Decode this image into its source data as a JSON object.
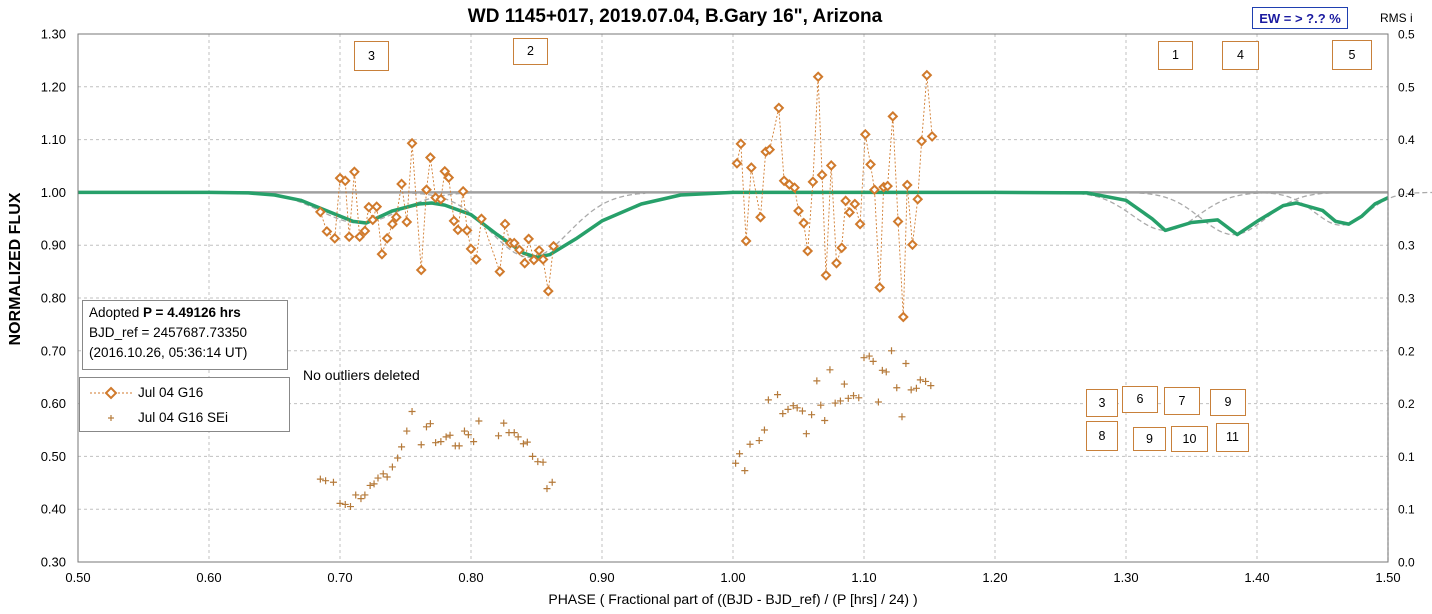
{
  "header": {
    "title": "WD 1145+017, 2019.07.04, B.Gary 16\", Arizona",
    "ew_badge": "EW = > ?.? %",
    "rms_axis_title": "RMS i"
  },
  "info_box": {
    "line1_prefix": "Adopted ",
    "line1_bold": "P = 4.49126 hrs",
    "line2": "BJD_ref = 2457687.73350",
    "line3": "(2016.10.26, 05:36:14 UT)"
  },
  "note": "No outliers deleted",
  "event_boxes": [
    "3",
    "2",
    "1",
    "4",
    "5",
    "3",
    "6",
    "7",
    "9",
    "8",
    "9",
    "10",
    "11"
  ],
  "colors": {
    "flux": "#d07a2c",
    "sei": "#b57a3a",
    "model": "#27a06a",
    "components": "#aaaaaa",
    "baseline": "#a0a0a0",
    "grid": "#c0c0c0"
  },
  "chart_data": {
    "type": "scatter",
    "title": "WD 1145+017, 2019.07.04, B.Gary 16\", Arizona",
    "xlabel": "PHASE ( Fractional part of ((BJD - BJD_ref) / (P [hrs] / 24) )",
    "ylabel": "NORMALIZED FLUX",
    "y2label": "RMS i",
    "xlim": [
      0.5,
      1.5
    ],
    "ylim": [
      0.3,
      1.3
    ],
    "y2lim": [
      0.0,
      0.5
    ],
    "x_ticks": [
      "0.50",
      "0.60",
      "0.70",
      "0.80",
      "0.90",
      "1.00",
      "1.10",
      "1.20",
      "1.30",
      "1.40",
      "1.50"
    ],
    "y_ticks": [
      "0.30",
      "0.40",
      "0.50",
      "0.60",
      "0.70",
      "0.80",
      "0.90",
      "1.00",
      "1.10",
      "1.20",
      "1.30"
    ],
    "y2_ticks": [
      "0.0",
      "0.1",
      "0.1",
      "0.2",
      "0.2",
      "0.3",
      "0.3",
      "0.4",
      "0.4",
      "0.5",
      "0.5"
    ],
    "grid": true,
    "legend_position": "left, middle",
    "series": [
      {
        "name": "Jul 04 G16",
        "marker": "diamond",
        "points": [
          [
            0.685,
            0.963
          ],
          [
            0.69,
            0.926
          ],
          [
            0.696,
            0.913
          ],
          [
            0.7,
            1.027
          ],
          [
            0.704,
            1.022
          ],
          [
            0.707,
            0.916
          ],
          [
            0.711,
            1.039
          ],
          [
            0.715,
            0.916
          ],
          [
            0.719,
            0.927
          ],
          [
            0.722,
            0.972
          ],
          [
            0.725,
            0.948
          ],
          [
            0.728,
            0.973
          ],
          [
            0.732,
            0.883
          ],
          [
            0.736,
            0.913
          ],
          [
            0.74,
            0.94
          ],
          [
            0.743,
            0.953
          ],
          [
            0.747,
            1.016
          ],
          [
            0.751,
            0.944
          ],
          [
            0.755,
            1.093
          ],
          [
            0.762,
            0.853
          ],
          [
            0.766,
            1.005
          ],
          [
            0.769,
            1.066
          ],
          [
            0.773,
            0.99
          ],
          [
            0.777,
            0.987
          ],
          [
            0.78,
            1.04
          ],
          [
            0.783,
            1.028
          ],
          [
            0.787,
            0.946
          ],
          [
            0.79,
            0.929
          ],
          [
            0.794,
            1.002
          ],
          [
            0.797,
            0.928
          ],
          [
            0.8,
            0.893
          ],
          [
            0.804,
            0.873
          ],
          [
            0.808,
            0.95
          ],
          [
            0.822,
            0.85
          ],
          [
            0.826,
            0.94
          ],
          [
            0.83,
            0.904
          ],
          [
            0.833,
            0.904
          ],
          [
            0.837,
            0.891
          ],
          [
            0.841,
            0.866
          ],
          [
            0.844,
            0.912
          ],
          [
            0.848,
            0.872
          ],
          [
            0.852,
            0.89
          ],
          [
            0.855,
            0.873
          ],
          [
            0.859,
            0.813
          ],
          [
            0.863,
            0.898
          ],
          [
            1.003,
            1.055
          ],
          [
            1.006,
            1.092
          ],
          [
            1.01,
            0.908
          ],
          [
            1.014,
            1.047
          ],
          [
            1.021,
            0.953
          ],
          [
            1.025,
            1.077
          ],
          [
            1.028,
            1.081
          ],
          [
            1.035,
            1.16
          ],
          [
            1.039,
            1.022
          ],
          [
            1.043,
            1.015
          ],
          [
            1.047,
            1.009
          ],
          [
            1.05,
            0.965
          ],
          [
            1.054,
            0.942
          ],
          [
            1.057,
            0.889
          ],
          [
            1.061,
            1.02
          ],
          [
            1.065,
            1.219
          ],
          [
            1.068,
            1.033
          ],
          [
            1.071,
            0.843
          ],
          [
            1.075,
            1.051
          ],
          [
            1.079,
            0.866
          ],
          [
            1.083,
            0.895
          ],
          [
            1.086,
            0.984
          ],
          [
            1.089,
            0.962
          ],
          [
            1.093,
            0.978
          ],
          [
            1.097,
            0.94
          ],
          [
            1.101,
            1.11
          ],
          [
            1.105,
            1.053
          ],
          [
            1.108,
            1.005
          ],
          [
            1.112,
            0.82
          ],
          [
            1.115,
            1.01
          ],
          [
            1.118,
            1.012
          ],
          [
            1.122,
            1.144
          ],
          [
            1.126,
            0.945
          ],
          [
            1.13,
            0.764
          ],
          [
            1.133,
            1.014
          ],
          [
            1.137,
            0.901
          ],
          [
            1.141,
            0.987
          ],
          [
            1.144,
            1.097
          ],
          [
            1.148,
            1.222
          ],
          [
            1.152,
            1.106
          ]
        ]
      },
      {
        "name": "Jul 04 G16 SEi",
        "marker": "plus",
        "points": [
          [
            0.685,
            0.457
          ],
          [
            0.689,
            0.454
          ],
          [
            0.695,
            0.451
          ],
          [
            0.7,
            0.411
          ],
          [
            0.704,
            0.409
          ],
          [
            0.708,
            0.405
          ],
          [
            0.712,
            0.427
          ],
          [
            0.716,
            0.42
          ],
          [
            0.719,
            0.427
          ],
          [
            0.723,
            0.445
          ],
          [
            0.726,
            0.448
          ],
          [
            0.729,
            0.459
          ],
          [
            0.733,
            0.467
          ],
          [
            0.736,
            0.461
          ],
          [
            0.74,
            0.48
          ],
          [
            0.744,
            0.497
          ],
          [
            0.747,
            0.518
          ],
          [
            0.751,
            0.548
          ],
          [
            0.755,
            0.585
          ],
          [
            0.762,
            0.522
          ],
          [
            0.766,
            0.556
          ],
          [
            0.769,
            0.562
          ],
          [
            0.773,
            0.526
          ],
          [
            0.777,
            0.528
          ],
          [
            0.781,
            0.537
          ],
          [
            0.784,
            0.54
          ],
          [
            0.788,
            0.52
          ],
          [
            0.791,
            0.52
          ],
          [
            0.795,
            0.548
          ],
          [
            0.798,
            0.541
          ],
          [
            0.802,
            0.528
          ],
          [
            0.806,
            0.567
          ],
          [
            0.821,
            0.539
          ],
          [
            0.825,
            0.563
          ],
          [
            0.829,
            0.545
          ],
          [
            0.833,
            0.545
          ],
          [
            0.836,
            0.537
          ],
          [
            0.84,
            0.524
          ],
          [
            0.843,
            0.527
          ],
          [
            0.847,
            0.5
          ],
          [
            0.851,
            0.49
          ],
          [
            0.855,
            0.489
          ],
          [
            0.858,
            0.439
          ],
          [
            0.862,
            0.451
          ],
          [
            1.002,
            0.487
          ],
          [
            1.005,
            0.505
          ],
          [
            1.009,
            0.473
          ],
          [
            1.013,
            0.523
          ],
          [
            1.02,
            0.53
          ],
          [
            1.024,
            0.55
          ],
          [
            1.027,
            0.607
          ],
          [
            1.034,
            0.617
          ],
          [
            1.038,
            0.581
          ],
          [
            1.042,
            0.589
          ],
          [
            1.046,
            0.596
          ],
          [
            1.049,
            0.592
          ],
          [
            1.053,
            0.586
          ],
          [
            1.056,
            0.543
          ],
          [
            1.06,
            0.579
          ],
          [
            1.064,
            0.643
          ],
          [
            1.067,
            0.597
          ],
          [
            1.07,
            0.568
          ],
          [
            1.074,
            0.664
          ],
          [
            1.078,
            0.601
          ],
          [
            1.082,
            0.605
          ],
          [
            1.085,
            0.637
          ],
          [
            1.088,
            0.61
          ],
          [
            1.092,
            0.615
          ],
          [
            1.096,
            0.611
          ],
          [
            1.1,
            0.687
          ],
          [
            1.104,
            0.69
          ],
          [
            1.107,
            0.68
          ],
          [
            1.111,
            0.603
          ],
          [
            1.114,
            0.663
          ],
          [
            1.117,
            0.66
          ],
          [
            1.121,
            0.7
          ],
          [
            1.125,
            0.63
          ],
          [
            1.129,
            0.575
          ],
          [
            1.132,
            0.676
          ],
          [
            1.136,
            0.626
          ],
          [
            1.14,
            0.629
          ],
          [
            1.143,
            0.645
          ],
          [
            1.147,
            0.642
          ],
          [
            1.151,
            0.634
          ]
        ]
      },
      {
        "name": "",
        "type": "line",
        "description_of_role": "model",
        "x": [
          0.5,
          0.55,
          0.6,
          0.63,
          0.65,
          0.67,
          0.69,
          0.71,
          0.72,
          0.74,
          0.76,
          0.77,
          0.78,
          0.8,
          0.82,
          0.84,
          0.85,
          0.86,
          0.88,
          0.9,
          0.93,
          0.96,
          1.0,
          1.1,
          1.2,
          1.27,
          1.3,
          1.32,
          1.33,
          1.35,
          1.37,
          1.385,
          1.4,
          1.42,
          1.43,
          1.45,
          1.46,
          1.47,
          1.48,
          1.49,
          1.5
        ],
        "y": [
          1.0,
          1.0,
          1.0,
          0.999,
          0.995,
          0.985,
          0.965,
          0.945,
          0.942,
          0.965,
          0.978,
          0.98,
          0.976,
          0.958,
          0.92,
          0.885,
          0.877,
          0.882,
          0.912,
          0.946,
          0.978,
          0.995,
          1.0,
          1.0,
          1.0,
          0.999,
          0.985,
          0.95,
          0.928,
          0.943,
          0.948,
          0.92,
          0.945,
          0.975,
          0.98,
          0.966,
          0.945,
          0.94,
          0.955,
          0.978,
          0.99
        ]
      }
    ],
    "component_dips": [
      {
        "center": 0.715,
        "depth": 0.058,
        "width": 0.03
      },
      {
        "center": 0.845,
        "depth": 0.123,
        "width": 0.03
      },
      {
        "center": 1.33,
        "depth": 0.072,
        "width": 0.025
      },
      {
        "center": 1.382,
        "depth": 0.08,
        "width": 0.025
      },
      {
        "center": 1.464,
        "depth": 0.062,
        "width": 0.02
      }
    ]
  }
}
